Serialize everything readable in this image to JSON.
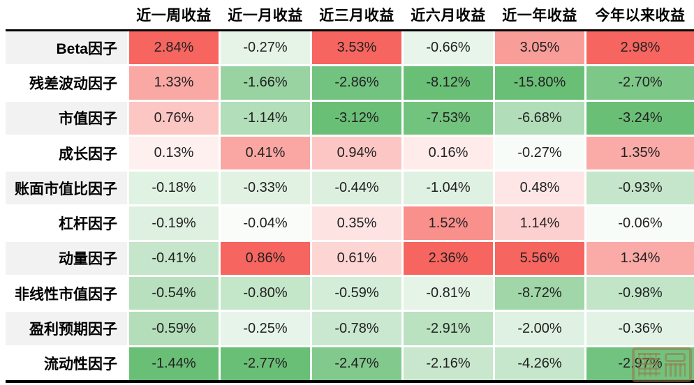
{
  "chart_data": {
    "type": "heatmap",
    "title": "",
    "categories": [
      "近一周收益",
      "近一月收益",
      "近三月收益",
      "近六月收益",
      "近一年收益",
      "今年以来收益"
    ],
    "series": [
      {
        "name": "Beta因子",
        "values": [
          2.84,
          -0.27,
          3.53,
          -0.66,
          3.05,
          2.98
        ]
      },
      {
        "name": "残差波动因子",
        "values": [
          1.33,
          -1.66,
          -2.86,
          -8.12,
          -15.8,
          -2.7
        ]
      },
      {
        "name": "市值因子",
        "values": [
          0.76,
          -1.14,
          -3.12,
          -7.53,
          -6.68,
          -3.24
        ]
      },
      {
        "name": "成长因子",
        "values": [
          0.13,
          0.41,
          0.94,
          0.16,
          -0.27,
          1.35
        ]
      },
      {
        "name": "账面市值比因子",
        "values": [
          -0.18,
          -0.33,
          -0.44,
          -1.04,
          0.48,
          -0.93
        ]
      },
      {
        "name": "杠杆因子",
        "values": [
          -0.19,
          -0.04,
          0.35,
          1.52,
          1.14,
          -0.06
        ]
      },
      {
        "name": "动量因子",
        "values": [
          -0.41,
          0.86,
          0.61,
          2.36,
          5.56,
          1.34
        ]
      },
      {
        "name": "非线性市值因子",
        "values": [
          -0.54,
          -0.8,
          -0.59,
          -0.81,
          -8.72,
          -0.98
        ]
      },
      {
        "name": "盈利预期因子",
        "values": [
          -0.59,
          -0.25,
          -0.78,
          -2.91,
          -2.0,
          -0.36
        ]
      },
      {
        "name": "流动性因子",
        "values": [
          -1.44,
          -2.77,
          -2.47,
          -2.16,
          -4.26,
          -2.97
        ]
      }
    ],
    "value_suffix": "%",
    "value_decimals": 2,
    "legend": "none",
    "grid": "off",
    "layout": "row labels right-aligned; 6 value columns; white 3px gaps between cells; black rule above first row and below last row",
    "colormap": {
      "positive_end": "#f6655f",
      "negative_end": "#6abf77",
      "midpoint": "#ffffff",
      "normalization": "per-column: t = value / column max (positive) or value / column min (negative), gamma 0.75",
      "gamma": 0.75
    }
  },
  "colors": {
    "background": "#ffffff",
    "header_text": "#000000",
    "cell_text": "#222222",
    "row_label_stripe_odd": "#f2f2f2",
    "row_label_stripe_even": "#ffffff",
    "rule": "#000000",
    "watermark": "#987446"
  },
  "watermark": {
    "icon": "seal-stamp-watermark"
  }
}
